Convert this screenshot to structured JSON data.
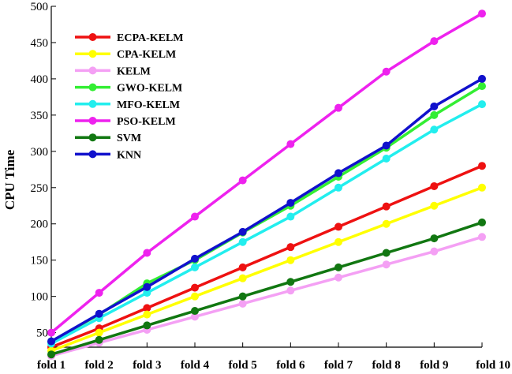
{
  "chart_data": {
    "type": "line",
    "title": "",
    "xlabel": "",
    "ylabel": "CPU Time",
    "categories": [
      "fold 1",
      "fold 2",
      "fold 3",
      "fold 4",
      "fold 5",
      "fold 6",
      "fold 7",
      "fold 8",
      "fold 9",
      "fold 10"
    ],
    "yticks": [
      50,
      100,
      150,
      200,
      250,
      300,
      350,
      400,
      450,
      500
    ],
    "ylim": [
      30,
      500
    ],
    "grid": false,
    "legend_position": "top-left",
    "series": [
      {
        "name": "ECPA-KELM",
        "color": "#ee1111",
        "values": [
          30,
          56,
          84,
          112,
          140,
          168,
          196,
          224,
          252,
          280
        ]
      },
      {
        "name": "CPA-KELM",
        "color": "#ffff00",
        "values": [
          25,
          50,
          75,
          100,
          125,
          150,
          175,
          200,
          225,
          250
        ]
      },
      {
        "name": "KELM",
        "color": "#f4a0f4",
        "values": [
          18,
          36,
          54,
          72,
          90,
          108,
          126,
          144,
          162,
          182
        ]
      },
      {
        "name": "GWO-KELM",
        "color": "#33ee33",
        "values": [
          38,
          75,
          118,
          150,
          188,
          225,
          265,
          305,
          350,
          390
        ]
      },
      {
        "name": "MFO-KELM",
        "color": "#22eeee",
        "values": [
          35,
          70,
          105,
          140,
          175,
          210,
          250,
          290,
          330,
          365
        ]
      },
      {
        "name": "PSO-KELM",
        "color": "#ee22ee",
        "values": [
          50,
          105,
          160,
          210,
          260,
          310,
          360,
          410,
          452,
          490
        ]
      },
      {
        "name": "SVM",
        "color": "#117711",
        "values": [
          20,
          40,
          60,
          80,
          100,
          120,
          140,
          160,
          180,
          202
        ]
      },
      {
        "name": "KNN",
        "color": "#1111cc",
        "values": [
          38,
          76,
          113,
          152,
          189,
          229,
          270,
          308,
          362,
          400
        ]
      }
    ]
  }
}
